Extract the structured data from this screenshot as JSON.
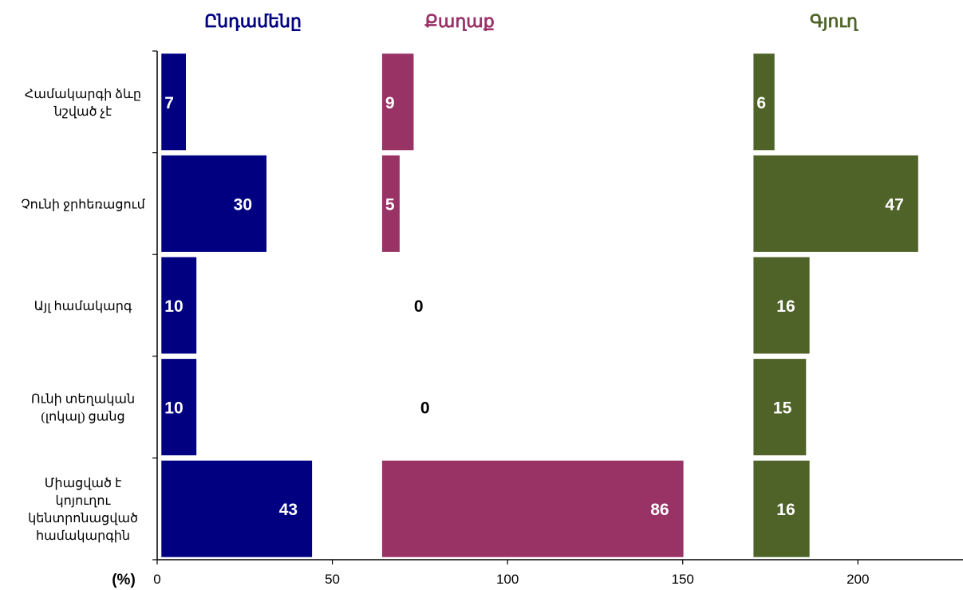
{
  "chart_data": {
    "type": "bar",
    "orientation": "horizontal",
    "unit_label": "(%)",
    "categories": [
      "Համակարգի ձևը\nնշված չէ",
      "Չունի ջրհեռացում",
      "Այլ համակարգ",
      "Ունի տեղական\n(լոկալ) ցանց",
      "Միացված է\nկոյուղու\nկենտրոնացված\nհամակարգին"
    ],
    "series": [
      {
        "name": "Ընդամենը",
        "values": [
          7,
          30,
          10,
          10,
          43
        ],
        "color": "#000080",
        "title_color": "#000080"
      },
      {
        "name": "Քաղաք",
        "values": [
          9,
          5,
          0,
          0,
          86
        ],
        "color": "#993366",
        "title_color": "#993366"
      },
      {
        "name": "Գյուղ",
        "values": [
          6,
          47,
          16,
          15,
          16
        ],
        "color": "#4F6228",
        "title_color": "#4F6228"
      }
    ],
    "x_axis": {
      "min": 0,
      "max": 230,
      "ticks": [
        0,
        50,
        100,
        150,
        200
      ]
    },
    "grid": false,
    "legend": "none"
  }
}
